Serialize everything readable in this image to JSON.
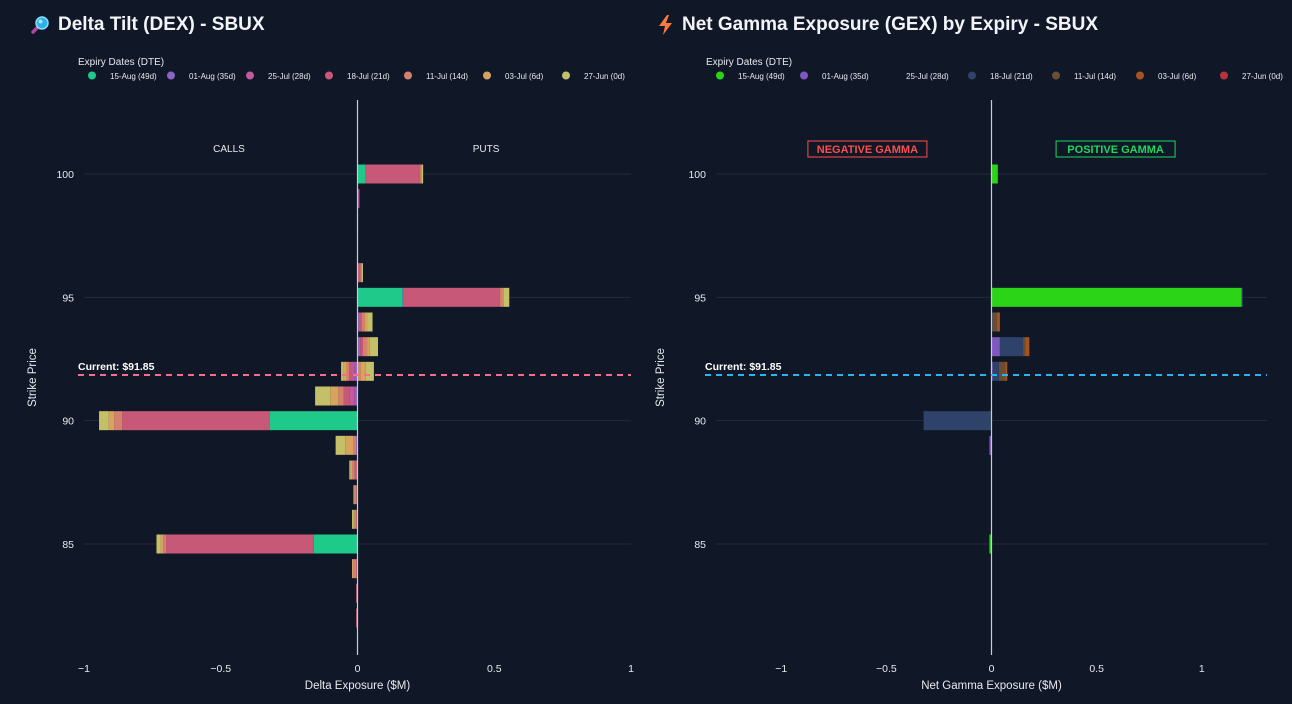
{
  "colors": {
    "background": "#101727",
    "grid": "#232b3b",
    "zero_line": "#c9ccd4",
    "text": "#e6e9ef",
    "dex_price_line": "#ff6b8a",
    "gex_price_line": "#29b6f6",
    "negative_gamma": "#ff4d4d",
    "positive_gamma": "#1ed760"
  },
  "dex": {
    "title": "Delta Tilt (DEX) - SBUX",
    "icon": "magnifier-icon",
    "legend_title": "Expiry Dates (DTE)",
    "calls_label": "CALLS",
    "puts_label": "PUTS",
    "current_label": "Current: $91.85"
  },
  "gex": {
    "title": "Net Gamma Exposure (GEX) by Expiry - SBUX",
    "icon": "lightning-icon",
    "legend_title": "Expiry Dates (DTE)",
    "negative_label": "NEGATIVE GAMMA",
    "positive_label": "POSITIVE GAMMA",
    "current_label": "Current: $91.85"
  },
  "chart_data": [
    {
      "type": "bar",
      "orientation": "horizontal",
      "stacked": true,
      "title": "Delta Tilt (DEX) - SBUX",
      "xlabel": "Delta Exposure ($M)",
      "ylabel": "Strike Price",
      "xlim": [
        -1.0,
        1.0
      ],
      "ylim": [
        80.5,
        103
      ],
      "xticks": [
        "−1",
        "−0.5",
        "0",
        "0.5",
        "1"
      ],
      "xtick_values": [
        -1,
        -0.5,
        0,
        0.5,
        1
      ],
      "yticks": [
        85,
        90,
        95,
        100
      ],
      "grid": true,
      "legend_title": "Expiry Dates (DTE)",
      "legend_position": "top",
      "current_price": 91.85,
      "strikes": [
        100,
        99,
        98,
        97,
        96,
        95,
        94,
        93,
        92,
        91,
        90,
        89,
        88,
        87,
        86,
        85,
        84,
        83,
        82
      ],
      "series": [
        {
          "name": "15-Aug (49d)",
          "color": "#1ec98a",
          "calls": [
            0,
            0,
            0,
            0,
            0,
            0,
            0,
            0,
            0,
            0,
            -0.32,
            0,
            0,
            0,
            0,
            -0.16,
            0,
            0,
            0
          ],
          "puts": [
            0.03,
            0,
            0,
            0,
            0,
            0.165,
            0,
            0,
            0,
            0,
            0,
            0,
            0,
            0,
            0,
            0,
            0,
            0,
            0
          ]
        },
        {
          "name": "01-Aug (35d)",
          "color": "#8e62c9",
          "calls": [
            0,
            0,
            0,
            0,
            0,
            0,
            0,
            0,
            -0.01,
            -0.01,
            0,
            -0.005,
            0,
            0,
            0,
            0,
            0,
            0,
            0
          ],
          "puts": [
            0,
            0.003,
            0,
            0,
            0,
            0.005,
            0.005,
            0.005,
            0,
            0,
            0,
            0,
            0,
            0,
            0,
            0,
            0,
            0,
            0
          ]
        },
        {
          "name": "25-Jul (28d)",
          "color": "#c25a9c",
          "calls": [
            0,
            0,
            0,
            0,
            0,
            0,
            0,
            0,
            -0.01,
            -0.02,
            0,
            0,
            0,
            0,
            0,
            0,
            0,
            0,
            0
          ],
          "puts": [
            0,
            0.004,
            0,
            0,
            0,
            0,
            0,
            0.005,
            0,
            0,
            0,
            0,
            0,
            0,
            0,
            0,
            0,
            0,
            0
          ]
        },
        {
          "name": "18-Jul (21d)",
          "color": "#c85878",
          "calls": [
            0,
            0,
            0,
            0,
            0,
            0,
            0,
            0,
            -0.01,
            -0.02,
            -0.54,
            0,
            -0.01,
            -0.005,
            -0.005,
            -0.54,
            -0.005,
            -0.005,
            -0.005
          ],
          "puts": [
            0.2,
            0,
            0,
            0,
            0.01,
            0.35,
            0.01,
            0.01,
            0,
            0,
            0,
            0,
            0,
            0,
            0,
            0,
            0,
            0,
            0
          ]
        },
        {
          "name": "11-Jul (14d)",
          "color": "#d4826e",
          "calls": [
            0,
            0,
            0,
            0,
            0,
            0,
            0,
            0,
            -0.01,
            -0.02,
            -0.03,
            -0.01,
            -0.01,
            -0.005,
            -0.005,
            -0.01,
            -0.01,
            0,
            0
          ],
          "puts": [
            0,
            0,
            0,
            0,
            0.005,
            0.01,
            0.01,
            0.015,
            0.01,
            0,
            0,
            0,
            0,
            0,
            0,
            0,
            0,
            0,
            0
          ]
        },
        {
          "name": "03-Jul (6d)",
          "color": "#d8a35e",
          "calls": [
            0,
            0,
            0,
            0,
            0,
            0,
            0,
            0,
            -0.01,
            -0.03,
            -0.02,
            -0.03,
            -0.005,
            -0.005,
            -0.005,
            -0.01,
            -0.005,
            0,
            0
          ],
          "puts": [
            0.005,
            0,
            0,
            0,
            0,
            0.005,
            0.01,
            0.01,
            0.02,
            0,
            0,
            0,
            0,
            0,
            0,
            0,
            0,
            0,
            0
          ]
        },
        {
          "name": "27-Jun (0d)",
          "color": "#c4c06a",
          "calls": [
            0,
            0,
            0,
            0,
            0,
            0,
            0,
            0,
            -0.01,
            -0.055,
            -0.035,
            -0.035,
            -0.005,
            0,
            -0.005,
            -0.015,
            0,
            0,
            0
          ],
          "puts": [
            0.005,
            0,
            0.002,
            0,
            0.005,
            0.02,
            0.02,
            0.03,
            0.03,
            0,
            0,
            0,
            0,
            0,
            0,
            0,
            0,
            0,
            0
          ]
        }
      ]
    },
    {
      "type": "bar",
      "orientation": "horizontal",
      "stacked": true,
      "title": "Net Gamma Exposure (GEX) by Expiry - SBUX",
      "xlabel": "Net Gamma Exposure ($M)",
      "ylabel": "Strike Price",
      "xlim": [
        -1.31,
        1.31
      ],
      "ylim": [
        80.5,
        103
      ],
      "xticks": [
        "−1",
        "−0.5",
        "0",
        "0.5",
        "1"
      ],
      "xtick_values": [
        -1,
        -0.5,
        0,
        0.5,
        1
      ],
      "yticks": [
        85,
        90,
        95,
        100
      ],
      "grid": true,
      "legend_title": "Expiry Dates (DTE)",
      "legend_position": "top",
      "current_price": 91.85,
      "strikes": [
        100,
        95,
        94,
        93,
        92,
        90,
        89,
        85
      ],
      "series": [
        {
          "name": "15-Aug (49d)",
          "color": "#2bd416",
          "values": [
            0.03,
            1.19,
            0,
            0,
            0,
            -0.003,
            0,
            -0.01
          ]
        },
        {
          "name": "01-Aug (35d)",
          "color": "#7f57c1",
          "values": [
            0,
            0,
            0,
            0.04,
            0.005,
            0,
            -0.01,
            0
          ]
        },
        {
          "name": "25-Jul (28d)",
          "color": "#101727",
          "values": [
            0,
            0,
            0,
            0,
            0,
            0,
            0,
            0
          ]
        },
        {
          "name": "18-Jul (21d)",
          "color": "#2e426a",
          "values": [
            0,
            0.002,
            0.005,
            0.11,
            0.03,
            -0.32,
            0,
            0
          ]
        },
        {
          "name": "11-Jul (14d)",
          "color": "#6a4e33",
          "values": [
            0,
            0,
            0.02,
            0.01,
            0.03,
            0,
            0,
            0
          ]
        },
        {
          "name": "03-Jul (6d)",
          "color": "#a8531f",
          "values": [
            0,
            0,
            0.015,
            0.02,
            0.01,
            0,
            0,
            0
          ]
        },
        {
          "name": "27-Jun (0d)",
          "color": "#b8323c",
          "values": [
            0,
            0,
            0,
            0,
            0,
            0,
            0,
            0
          ]
        }
      ]
    }
  ]
}
